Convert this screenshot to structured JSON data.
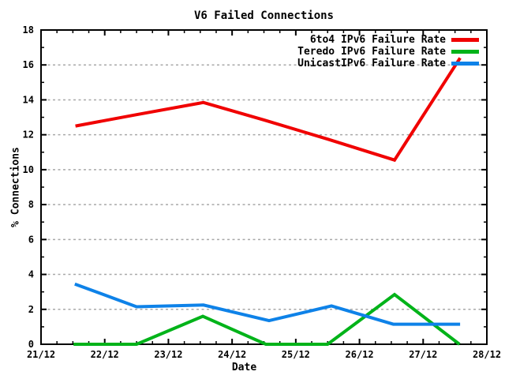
{
  "chart_data": {
    "type": "line",
    "title": "V6 Failed Connections",
    "xlabel": "Date",
    "ylabel": "% Connections",
    "x_tick_labels": [
      "21/12",
      "22/12",
      "23/12",
      "24/12",
      "25/12",
      "26/12",
      "27/12",
      "28/12"
    ],
    "x_range_days": [
      0,
      7
    ],
    "x_minor_step_days": 0.25,
    "ylim": [
      0,
      18
    ],
    "y_tick_step": 2,
    "y_minor_step": 1,
    "grid": "horizontal-dashed",
    "legend_position": "top-right-inside",
    "series": [
      {
        "name": "6to4 IPv6 Failure Rate",
        "color": "#f00000",
        "x_days": [
          0.54,
          1.5,
          2.55,
          3.5,
          4.5,
          5.55,
          6.58
        ],
        "values": [
          12.5,
          13.15,
          13.85,
          12.85,
          11.75,
          10.55,
          16.4
        ]
      },
      {
        "name": "Teredo IPv6 Failure Rate",
        "color": "#00b319",
        "x_days": [
          0.51,
          1.5,
          2.54,
          3.53,
          4.5,
          5.55,
          6.57
        ],
        "values": [
          0,
          0,
          1.6,
          0,
          0,
          2.85,
          0
        ]
      },
      {
        "name": "UnicastIPv6 Failure Rate",
        "color": "#0e82e8",
        "x_days": [
          0.53,
          1.5,
          2.55,
          3.58,
          4.56,
          5.53,
          6.58
        ],
        "values": [
          3.45,
          2.15,
          2.25,
          1.35,
          2.2,
          1.15,
          1.15
        ]
      }
    ],
    "colors": {
      "background": "#ffffff",
      "axis": "#000000",
      "text": "#000000",
      "grid": "#a8a8a8"
    }
  }
}
